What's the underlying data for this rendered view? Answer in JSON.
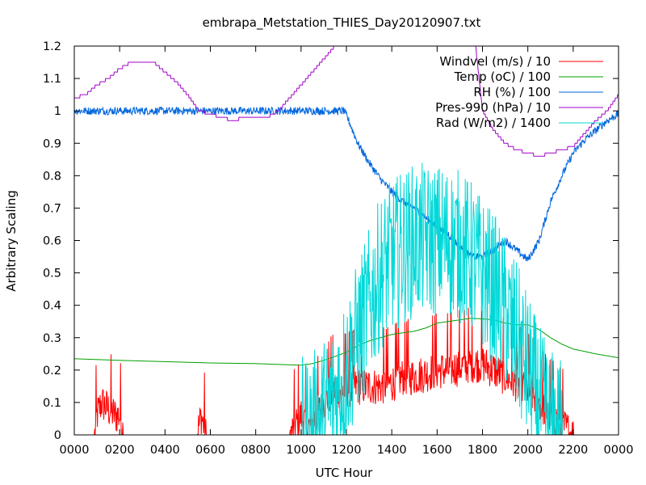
{
  "chart_data": {
    "type": "line",
    "title": "embrapa_Metstation_THIES_Day20120907.txt",
    "xlabel": "UTC Hour",
    "ylabel": "Arbitrary Scaling",
    "xlim": [
      0,
      24
    ],
    "ylim": [
      0,
      1.2
    ],
    "x_ticks": [
      {
        "value": 0,
        "label": "0000"
      },
      {
        "value": 2,
        "label": "0200"
      },
      {
        "value": 4,
        "label": "0400"
      },
      {
        "value": 6,
        "label": "0600"
      },
      {
        "value": 8,
        "label": "0800"
      },
      {
        "value": 10,
        "label": "1000"
      },
      {
        "value": 12,
        "label": "1200"
      },
      {
        "value": 14,
        "label": "1400"
      },
      {
        "value": 16,
        "label": "1600"
      },
      {
        "value": 18,
        "label": "1800"
      },
      {
        "value": 20,
        "label": "2000"
      },
      {
        "value": 22,
        "label": "2200"
      },
      {
        "value": 24,
        "label": "0000"
      }
    ],
    "y_ticks": [
      {
        "value": 0,
        "label": "0"
      },
      {
        "value": 0.1,
        "label": "0.1"
      },
      {
        "value": 0.2,
        "label": "0.2"
      },
      {
        "value": 0.3,
        "label": "0.3"
      },
      {
        "value": 0.4,
        "label": "0.4"
      },
      {
        "value": 0.5,
        "label": "0.5"
      },
      {
        "value": 0.6,
        "label": "0.6"
      },
      {
        "value": 0.7,
        "label": "0.7"
      },
      {
        "value": 0.8,
        "label": "0.8"
      },
      {
        "value": 0.9,
        "label": "0.9"
      },
      {
        "value": 1.0,
        "label": "1"
      },
      {
        "value": 1.1,
        "label": "1.1"
      },
      {
        "value": 1.2,
        "label": "1.2"
      }
    ],
    "grid": false,
    "legend_position": "top-right",
    "series": [
      {
        "name": "Windvel (m/s) / 10",
        "color": "#ff0000",
        "noise": 0.06,
        "x": [
          0,
          0.9,
          1.0,
          1.2,
          1.5,
          1.8,
          2.0,
          2.2,
          5.4,
          5.6,
          5.8,
          9.5,
          10.0,
          10.3,
          10.6,
          11.0,
          11.5,
          12.0,
          12.5,
          13.0,
          13.5,
          14.0,
          14.5,
          15.0,
          15.5,
          16.0,
          16.5,
          17.0,
          17.5,
          18.0,
          18.5,
          19.0,
          19.5,
          20.0,
          20.5,
          21.0,
          21.5,
          22.0,
          24
        ],
        "y": [
          0,
          0,
          0.06,
          0.1,
          0.08,
          0.06,
          0.06,
          0,
          0,
          0.06,
          0,
          0,
          0.06,
          0.02,
          0.05,
          0.1,
          0.14,
          0.14,
          0.15,
          0.15,
          0.15,
          0.16,
          0.18,
          0.18,
          0.19,
          0.2,
          0.2,
          0.21,
          0.22,
          0.22,
          0.2,
          0.18,
          0.16,
          0.14,
          0.1,
          0.06,
          0.03,
          0,
          0
        ]
      },
      {
        "name": "Temp (oC) / 100",
        "color": "#00a000",
        "noise": 0,
        "x": [
          0,
          2,
          4,
          6,
          8,
          10,
          10.5,
          11,
          11.5,
          12,
          12.5,
          13,
          13.5,
          14,
          14.5,
          15,
          15.5,
          16,
          16.5,
          17,
          17.5,
          18,
          18.5,
          19,
          19.5,
          20,
          20.5,
          21,
          21.5,
          22,
          23,
          24
        ],
        "y": [
          0.235,
          0.23,
          0.226,
          0.222,
          0.22,
          0.215,
          0.22,
          0.23,
          0.242,
          0.255,
          0.275,
          0.29,
          0.3,
          0.31,
          0.315,
          0.32,
          0.33,
          0.345,
          0.35,
          0.355,
          0.36,
          0.358,
          0.355,
          0.345,
          0.34,
          0.34,
          0.325,
          0.3,
          0.28,
          0.265,
          0.25,
          0.238
        ]
      },
      {
        "name": "RH (%) / 100",
        "color": "#0066dd",
        "noise": 0.012,
        "x": [
          0,
          4,
          8,
          11.9,
          12.1,
          12.5,
          13,
          13.5,
          14,
          14.5,
          15,
          15.5,
          16,
          16.5,
          17,
          17.5,
          18,
          18.5,
          19,
          19.5,
          20,
          20.5,
          21,
          21.5,
          22,
          22.5,
          23,
          23.5,
          24
        ],
        "y": [
          1.0,
          1.0,
          1.0,
          1.0,
          0.97,
          0.9,
          0.84,
          0.79,
          0.75,
          0.72,
          0.7,
          0.67,
          0.64,
          0.62,
          0.58,
          0.55,
          0.55,
          0.57,
          0.6,
          0.57,
          0.54,
          0.6,
          0.72,
          0.8,
          0.87,
          0.91,
          0.94,
          0.97,
          0.99
        ]
      },
      {
        "name": "Pres-990 (hPa) / 10",
        "color": "#a000c8",
        "noise": 0,
        "x": [
          0,
          0.5,
          1,
          1.5,
          2,
          2.5,
          3,
          3.5,
          4,
          4.5,
          5,
          5.5,
          6,
          6.5,
          7,
          7.5,
          8,
          8.5,
          9,
          9.5,
          10,
          10.5,
          11,
          11.5,
          17.7,
          18,
          18.5,
          19,
          19.5,
          20,
          20.5,
          21,
          21.5,
          22,
          22.5,
          23,
          23.5,
          24
        ],
        "y": [
          1.04,
          1.05,
          1.08,
          1.1,
          1.13,
          1.15,
          1.15,
          1.15,
          1.12,
          1.09,
          1.05,
          1.0,
          0.99,
          0.98,
          0.97,
          0.98,
          0.98,
          0.98,
          1.0,
          1.04,
          1.08,
          1.12,
          1.16,
          1.2,
          1.2,
          1.0,
          0.94,
          0.9,
          0.88,
          0.87,
          0.86,
          0.87,
          0.88,
          0.89,
          0.93,
          0.97,
          1.0,
          1.05
        ]
      },
      {
        "name": "Rad (W/m2) / 1400",
        "color": "#00d8d8",
        "noise": 0.2,
        "x": [
          0,
          10.0,
          10.5,
          11.0,
          11.5,
          12.0,
          12.5,
          13.0,
          13.5,
          14.0,
          14.5,
          15.0,
          15.5,
          16.0,
          16.5,
          17.0,
          17.5,
          18.0,
          18.5,
          19.0,
          19.5,
          20.0,
          20.5,
          21.0,
          21.5,
          24
        ],
        "y": [
          0,
          0,
          0.02,
          0.06,
          0.12,
          0.2,
          0.3,
          0.4,
          0.5,
          0.55,
          0.58,
          0.6,
          0.6,
          0.6,
          0.6,
          0.58,
          0.55,
          0.5,
          0.45,
          0.38,
          0.3,
          0.2,
          0.1,
          0.03,
          0,
          0
        ]
      }
    ]
  }
}
